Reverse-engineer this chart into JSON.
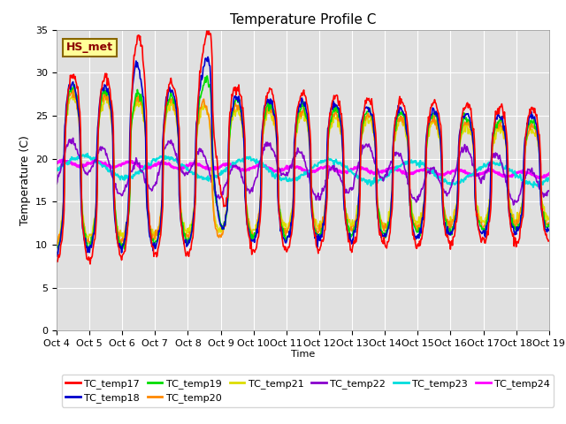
{
  "title": "Temperature Profile C",
  "xlabel": "Time",
  "ylabel": "Temperature (C)",
  "ylim": [
    0,
    35
  ],
  "annotation": "HS_met",
  "legend": [
    "TC_temp17",
    "TC_temp18",
    "TC_temp19",
    "TC_temp20",
    "TC_temp21",
    "TC_temp22",
    "TC_temp23",
    "TC_temp24"
  ],
  "colors": [
    "#ff0000",
    "#0000cc",
    "#00dd00",
    "#ff8800",
    "#dddd00",
    "#8800cc",
    "#00dddd",
    "#ff00ff"
  ],
  "line_widths": [
    1.2,
    1.2,
    1.2,
    1.2,
    1.2,
    1.2,
    1.5,
    2.0
  ],
  "bg_color": "#e0e0e0",
  "fig_bg": "#ffffff",
  "xtick_labels": [
    "Oct 4",
    "Oct 5",
    "Oct 6",
    "Oct 7",
    "Oct 8",
    "Oct 9",
    "Oct 10",
    "Oct 11",
    "Oct 12",
    "Oct 13",
    "Oct 14",
    "Oct 15",
    "Oct 16",
    "Oct 17",
    "Oct 18",
    "Oct 19"
  ],
  "grid_color": "#ffffff",
  "annotation_bg": "#ffff99",
  "annotation_border": "#886600",
  "yticks": [
    0,
    5,
    10,
    15,
    20,
    25,
    30,
    35
  ],
  "n_days": 15,
  "n_per_day": 48
}
